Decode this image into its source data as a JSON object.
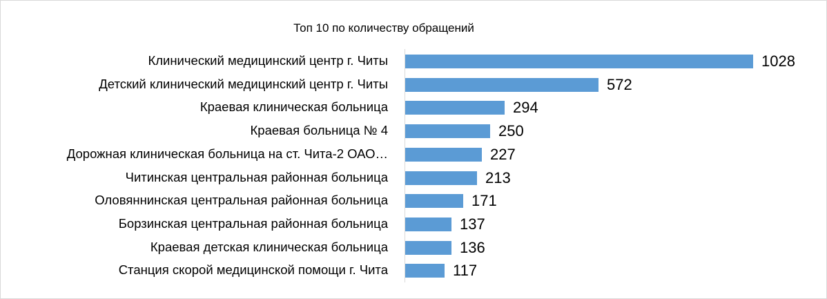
{
  "chart_data": {
    "type": "bar",
    "orientation": "horizontal",
    "title": "Топ 10 по количеству обращений",
    "xlabel": "",
    "ylabel": "",
    "grid": false,
    "legend": null,
    "data_labels": true,
    "bar_color": "#5b9bd5",
    "xlim": [
      0,
      1028
    ],
    "categories": [
      "Клинический медицинский центр г. Читы",
      "Детский клинический медицинский центр г. Читы",
      "Краевая клиническая больница",
      "Краевая больница № 4",
      "Дорожная клиническая больница на ст. Чита-2 ОАО…",
      "Читинская центральная районная больница",
      "Оловяннинская центральная районная больница",
      "Борзинская центральная районная больница",
      "Краевая детская клиническая больница",
      "Станция скорой медицинской помощи г. Чита"
    ],
    "values": [
      1028,
      572,
      294,
      250,
      227,
      213,
      171,
      137,
      136,
      117
    ]
  }
}
